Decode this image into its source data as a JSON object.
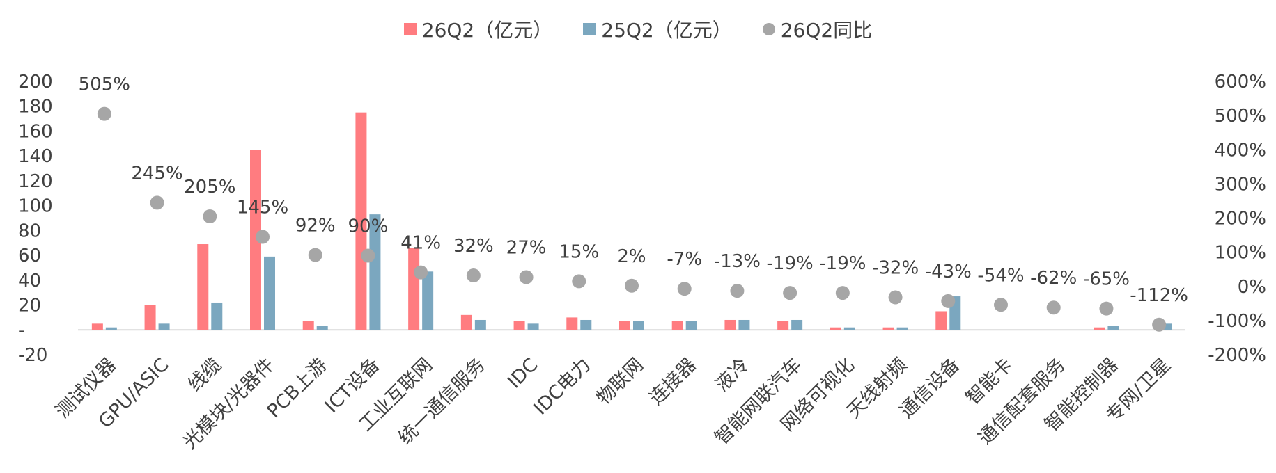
{
  "chart_data": {
    "type": "bar",
    "categories": [
      "测试仪器",
      "GPU/ASIC",
      "线缆",
      "光模块/光器件",
      "PCB上游",
      "ICT设备",
      "工业互联网",
      "统一通信服务",
      "IDC",
      "IDC电力",
      "物联网",
      "连接器",
      "液冷",
      "智能网联汽车",
      "网络可视化",
      "天线射频",
      "通信设备",
      "智能卡",
      "通信配套服务",
      "智能控制器",
      "专网/卫星"
    ],
    "series": [
      {
        "name": "26Q2（亿元）",
        "kind": "bar",
        "axis": "left",
        "color": "#FF7C80",
        "values": [
          5,
          20,
          69,
          145,
          7,
          175,
          66,
          12,
          7,
          10,
          7,
          7,
          8,
          7,
          2,
          2,
          15,
          0,
          0,
          2,
          0
        ]
      },
      {
        "name": "25Q2（亿元）",
        "kind": "bar",
        "axis": "left",
        "color": "#7BA7BF",
        "values": [
          2,
          5,
          22,
          59,
          3,
          93,
          47,
          8,
          5,
          8,
          7,
          7,
          8,
          8,
          2,
          2,
          27,
          0,
          0,
          3,
          5
        ]
      },
      {
        "name": "26Q2同比",
        "kind": "scatter",
        "axis": "right",
        "color": "#A6A6A6",
        "values": [
          505,
          245,
          205,
          145,
          92,
          90,
          41,
          32,
          27,
          15,
          2,
          -7,
          -13,
          -19,
          -19,
          -32,
          -43,
          -54,
          -62,
          -65,
          -112
        ],
        "labels": [
          "505%",
          "245%",
          "205%",
          "145%",
          "92%",
          "90%",
          "41%",
          "32%",
          "27%",
          "15%",
          "2%",
          "-7%",
          "-13%",
          "-19%",
          "-19%",
          "-32%",
          "-43%",
          "-54%",
          "-62%",
          "-65%",
          "-112%"
        ]
      }
    ],
    "left_axis": {
      "ylim": [
        -20,
        200
      ],
      "ticks": [
        -20,
        0,
        20,
        40,
        60,
        80,
        100,
        120,
        140,
        160,
        180,
        200
      ],
      "tick_labels": [
        "-20",
        "-",
        "20",
        "40",
        "60",
        "80",
        "100",
        "120",
        "140",
        "160",
        "180",
        "200"
      ]
    },
    "right_axis": {
      "ylim": [
        -200,
        600
      ],
      "ticks": [
        -200,
        -100,
        0,
        100,
        200,
        300,
        400,
        500,
        600
      ],
      "tick_labels": [
        "-200%",
        "-100%",
        "0%",
        "100%",
        "200%",
        "300%",
        "400%",
        "500%",
        "600%"
      ]
    },
    "legend_position": "top-center",
    "grid": false
  }
}
